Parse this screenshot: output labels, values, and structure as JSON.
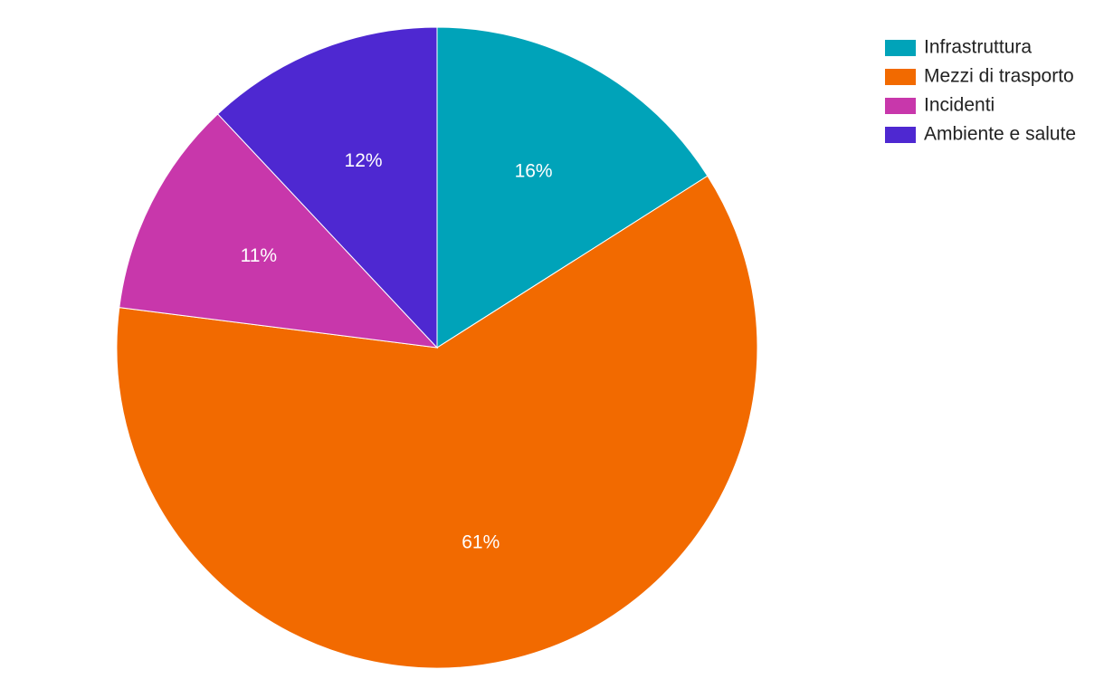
{
  "chart_data": {
    "type": "pie",
    "categories": [
      "Infrastruttura",
      "Mezzi di trasporto",
      "Incidenti",
      "Ambiente e salute"
    ],
    "values": [
      16,
      61,
      11,
      12
    ],
    "value_labels": [
      "16%",
      "61%",
      "11%",
      "12%"
    ],
    "colors": [
      "#00a3b9",
      "#f26a00",
      "#c837ab",
      "#4e28d1"
    ],
    "legend": "top-right"
  }
}
